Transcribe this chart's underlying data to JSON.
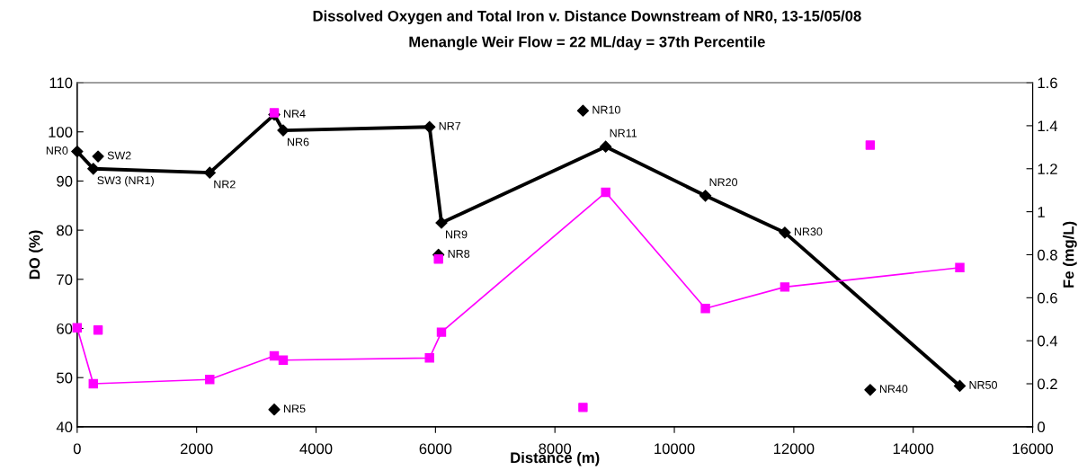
{
  "chart_data": {
    "type": "line",
    "title": "Dissolved Oxygen and Total Iron v. Distance Downstream of NR0, 13-15/05/08",
    "subtitle": "Menangle Weir Flow = 22 ML/day = 37th Percentile",
    "xlabel": "Distance (m)",
    "ylabel": "DO (%)",
    "y2label": "Fe (mg/L)",
    "xlim": [
      0,
      16000
    ],
    "xticks": [
      0,
      2000,
      4000,
      6000,
      8000,
      10000,
      12000,
      14000,
      16000
    ],
    "ylim": [
      40,
      110
    ],
    "yticks": [
      40,
      50,
      60,
      70,
      80,
      90,
      100,
      110
    ],
    "y2lim": [
      0,
      1.6
    ],
    "y2ticks": [
      0,
      0.2,
      0.4,
      0.6,
      0.8,
      1,
      1.2,
      1.4,
      1.6
    ],
    "grid": false,
    "legend": false,
    "series": [
      {
        "color": "#000000",
        "marker": "diamond",
        "x": [
          0,
          270,
          2220,
          3300,
          3450,
          5900,
          6100,
          8850,
          10520,
          11850,
          14780
        ],
        "values": [
          96,
          92.5,
          91.7,
          103.5,
          100.3,
          101,
          81.5,
          97,
          87,
          79.5,
          48.3
        ]
      },
      {
        "type": "scatter",
        "color": "#000000",
        "marker": "diamond",
        "x": [
          350,
          3300,
          6050,
          8470,
          13280
        ],
        "values": [
          95,
          43.5,
          75,
          104.3,
          47.5
        ]
      },
      {
        "axis": "y2",
        "color": "#ff00ff",
        "marker": "square",
        "x": [
          0,
          270,
          2220,
          3300,
          3450,
          5900,
          6100,
          8850,
          10520,
          11850,
          14780
        ],
        "values": [
          0.46,
          0.2,
          0.22,
          0.33,
          0.31,
          0.32,
          0.44,
          1.09,
          0.55,
          0.65,
          0.74
        ]
      },
      {
        "type": "scatter",
        "axis": "y2",
        "color": "#ff00ff",
        "marker": "square",
        "x": [
          350,
          3300,
          6050,
          8470,
          13280
        ],
        "values": [
          0.45,
          1.46,
          0.78,
          0.09,
          1.31
        ]
      }
    ],
    "annotations": [
      {
        "text": "NR0",
        "x": 0,
        "y": 96
      },
      {
        "text": "SW3 (NR1)",
        "x": 270,
        "y": 92.5
      },
      {
        "text": "SW2",
        "x": 350,
        "y": 95
      },
      {
        "text": "NR2",
        "x": 2220,
        "y": 91.7
      },
      {
        "text": "NR4",
        "x": 3300,
        "y": 103.5
      },
      {
        "text": "NR6",
        "x": 3450,
        "y": 100.3
      },
      {
        "text": "NR5",
        "x": 3300,
        "y": 43.5
      },
      {
        "text": "NR7",
        "x": 5900,
        "y": 101
      },
      {
        "text": "NR8",
        "x": 6050,
        "y": 75
      },
      {
        "text": "NR9",
        "x": 6100,
        "y": 81.5
      },
      {
        "text": "NR10",
        "x": 8470,
        "y": 104.3
      },
      {
        "text": "NR11",
        "x": 8850,
        "y": 97
      },
      {
        "text": "NR20",
        "x": 10520,
        "y": 87
      },
      {
        "text": "NR30",
        "x": 11850,
        "y": 79.5
      },
      {
        "text": "NR40",
        "x": 13280,
        "y": 47.5
      },
      {
        "text": "NR50",
        "x": 14780,
        "y": 48.3
      }
    ]
  }
}
